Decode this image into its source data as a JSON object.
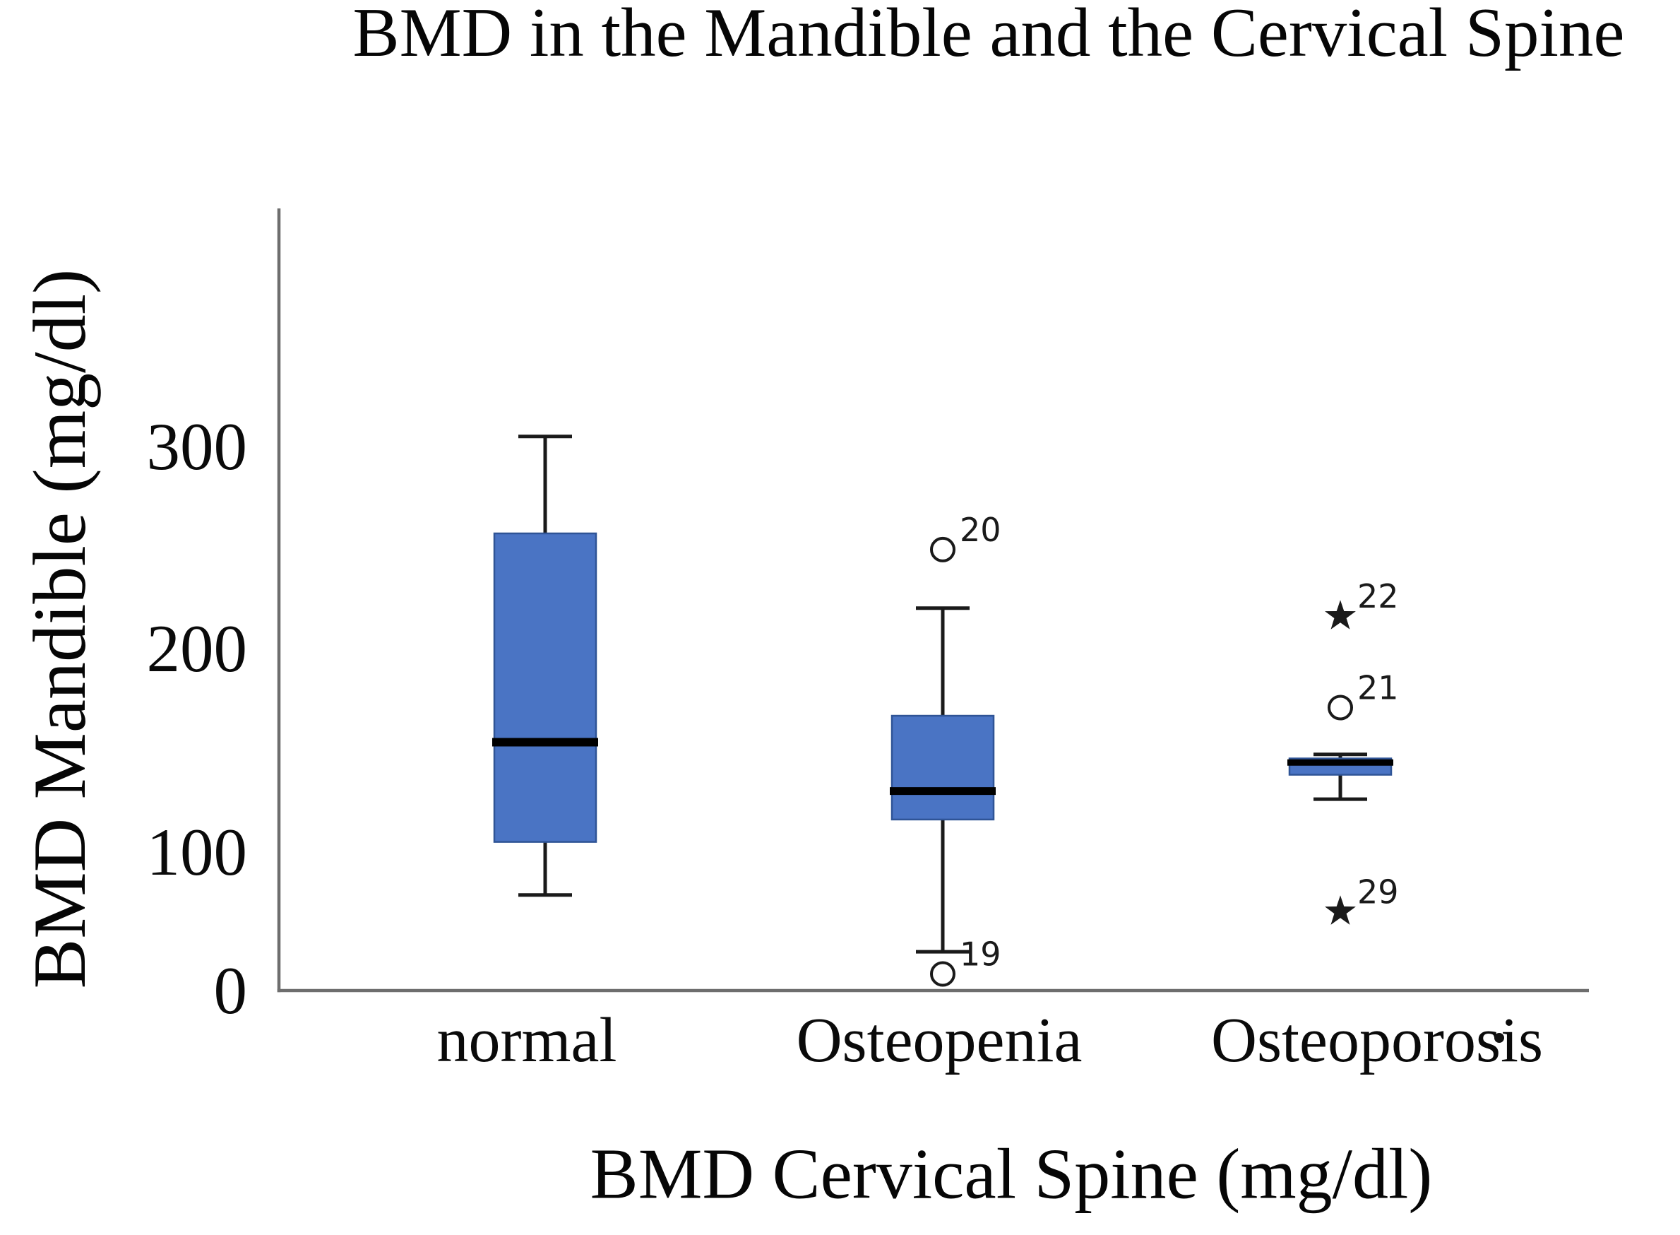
{
  "figure": {
    "title": "BMD in the Mandible and the Cervical Spine",
    "y_axis_label": "BMD Mandible (mg/dl)",
    "x_axis_label": "BMD Cervical Spine (mg/dl)"
  },
  "chart_data": {
    "type": "boxplot",
    "title": "BMD in the Mandible and the Cervical Spine",
    "xlabel": "BMD Cervical Spine (mg/dl)",
    "ylabel": "BMD Mandible (mg/dl)",
    "categories": [
      "normal",
      "Osteopenia",
      "Osteoporosis"
    ],
    "y_ticks": [
      0,
      100,
      200,
      300
    ],
    "ylim": [
      0,
      390
    ],
    "grid": false,
    "legend": null,
    "boxes": [
      {
        "category": "normal",
        "whisker_low": 69,
        "q1": 105,
        "median": 154,
        "q3": 257,
        "whisker_high": 305,
        "outliers": []
      },
      {
        "category": "Osteopenia",
        "whisker_low": 28,
        "q1": 116,
        "median": 130,
        "q3": 167,
        "whisker_high": 220,
        "outliers": [
          {
            "value": 249,
            "label": "20",
            "marker": "circle"
          },
          {
            "value": 12,
            "label": "19",
            "marker": "circle"
          }
        ]
      },
      {
        "category": "Osteoporosis",
        "whisker_low": 126,
        "q1": 138,
        "median": 144,
        "q3": 146,
        "whisker_high": 148,
        "outliers": [
          {
            "value": 216,
            "label": "22",
            "marker": "star"
          },
          {
            "value": 171,
            "label": "21",
            "marker": "circle"
          },
          {
            "value": 57,
            "label": "29",
            "marker": "star"
          }
        ]
      }
    ],
    "colors": {
      "box_fill": "#4a74c4",
      "box_border": "#2f5496",
      "median": "#000000",
      "whisker": "#1a1a1a",
      "axis": "#6e6e6e",
      "outlier_stroke": "#1a1a1a"
    }
  }
}
